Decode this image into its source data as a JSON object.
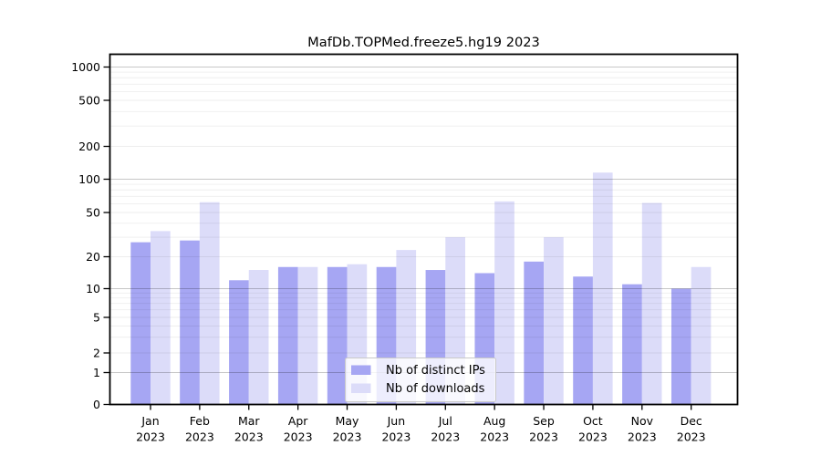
{
  "title": "MafDb.TOPMed.freeze5.hg19 2023",
  "chart_data": {
    "type": "bar",
    "title": "MafDb.TOPMed.freeze5.hg19 2023",
    "categories": [
      "Jan",
      "Feb",
      "Mar",
      "Apr",
      "May",
      "Jun",
      "Jul",
      "Aug",
      "Sep",
      "Oct",
      "Nov",
      "Dec"
    ],
    "category_year": "2023",
    "series": [
      {
        "name": "Nb of distinct IPs",
        "color": "#a6a6f3",
        "values": [
          27,
          28,
          12,
          16,
          16,
          16,
          15,
          14,
          18,
          13,
          11,
          10
        ]
      },
      {
        "name": "Nb of downloads",
        "color": "#dcdcf9",
        "values": [
          34,
          62,
          15,
          16,
          17,
          23,
          30,
          63,
          30,
          115,
          61,
          16
        ]
      }
    ],
    "y_ticks": [
      0,
      1,
      2,
      5,
      10,
      20,
      50,
      100,
      200,
      500,
      1000
    ],
    "y_scale": "pseudo-log",
    "ylim": [
      0,
      1300
    ],
    "xlabel": "",
    "ylabel": "",
    "grid": "major-and-minor-horizontal",
    "legend_position": "lower center",
    "colors": {
      "spine": "#000000",
      "major_grid": "rgba(0,0,0,0.22)",
      "minor_grid": "rgba(0,0,0,0.065)",
      "legend_border": "#c9c9c9",
      "legend_bg": "rgba(255,255,255,0.8)"
    }
  }
}
